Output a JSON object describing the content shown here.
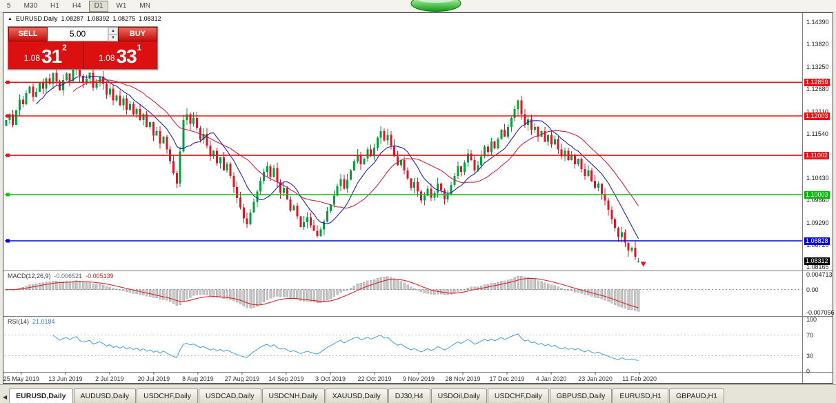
{
  "toolbar": {
    "timeframes": [
      "5",
      "M30",
      "H1",
      "H4",
      "D1",
      "W1",
      "MN"
    ],
    "active_timeframe": "D1"
  },
  "quote_bar": {
    "symbol_label": "EURUSD,Daily",
    "open": "1.08287",
    "high": "1.08392",
    "low": "1.08275",
    "close": "1.08312"
  },
  "trade_panel": {
    "sell_label": "SELL",
    "buy_label": "BUY",
    "volume": "5.00",
    "sell_price_small": "1.08",
    "sell_price_big": "31",
    "sell_price_sup": "2",
    "buy_price_small": "1.08",
    "buy_price_big": "33",
    "buy_price_sup": "1"
  },
  "price_axis": {
    "labels": [
      {
        "text": "1.14390",
        "price": 1.1439
      },
      {
        "text": "1.13820",
        "price": 1.1382
      },
      {
        "text": "1.13250",
        "price": 1.1325
      },
      {
        "text": "1.12680",
        "price": 1.1268
      },
      {
        "text": "1.12110",
        "price": 1.1211
      },
      {
        "text": "1.11540",
        "price": 1.1154
      },
      {
        "text": "1.10430",
        "price": 1.1043
      },
      {
        "text": "1.09860",
        "price": 1.0986
      },
      {
        "text": "1.09290",
        "price": 1.0929
      },
      {
        "text": "1.08720",
        "price": 1.0872
      },
      {
        "text": "1.08165",
        "price": 1.08165
      }
    ]
  },
  "levels": [
    {
      "label": "1.12859",
      "price": 1.12859,
      "color": "#ee1111",
      "badge": "red"
    },
    {
      "label": "1.12003",
      "price": 1.12003,
      "color": "#ee1111",
      "badge": "red"
    },
    {
      "label": "1.11002",
      "price": 1.11002,
      "color": "#ee1111",
      "badge": "red"
    },
    {
      "label": "1.10003",
      "price": 1.10003,
      "color": "#00cc00",
      "badge": "green"
    },
    {
      "label": "1.08828",
      "price": 1.08828,
      "color": "#0000ee",
      "badge": "blue"
    }
  ],
  "current_price": {
    "label": "1.08312",
    "price": 1.08312,
    "badge": "black"
  },
  "macd": {
    "title": "MACD(12,26,9)",
    "value_main": "-0.006521",
    "value_signal": "-0.005139",
    "axis": [
      "0.004713",
      "0.00",
      "-0.007056"
    ]
  },
  "rsi": {
    "title": "RSI(14)",
    "value": "21.0184",
    "axis": [
      "100",
      "70",
      "30",
      "0"
    ],
    "level_lines": [
      70,
      30
    ]
  },
  "date_axis": [
    "25 May 2019",
    "13 Jun 2019",
    "2 Jul 2019",
    "20 Jul 2019",
    "8 Aug 2019",
    "27 Aug 2019",
    "14 Sep 2019",
    "3 Oct 2019",
    "22 Oct 2019",
    "9 Nov 2019",
    "28 Nov 2019",
    "17 Dec 2019",
    "4 Jan 2020",
    "23 Jan 2020",
    "11 Feb 2020"
  ],
  "tabs": [
    {
      "label": "EURUSD,Daily",
      "active": true
    },
    {
      "label": "AUDUSD,Daily",
      "active": false
    },
    {
      "label": "USDCHF,Daily",
      "active": false
    },
    {
      "label": "USDCAD,Daily",
      "active": false
    },
    {
      "label": "USDCNH,Daily",
      "active": false
    },
    {
      "label": "XAUUSD,Daily",
      "active": false
    },
    {
      "label": "DJ30,H4",
      "active": false
    },
    {
      "label": "USDOil,Daily",
      "active": false
    },
    {
      "label": "USDCHF,Daily",
      "active": false
    },
    {
      "label": "GBPUSD,Daily",
      "active": false
    },
    {
      "label": "EURUSD,H1",
      "active": false
    },
    {
      "label": "GBPAUD,H1",
      "active": false
    }
  ],
  "chart_data": {
    "type": "candlestick",
    "symbol": "EURUSD",
    "timeframe": "Daily",
    "visible_price_range": [
      1.0809,
      1.1462
    ],
    "first_open": 1.1175,
    "last_candle_ohlc": [
      1.08287,
      1.08392,
      1.08275,
      1.08312
    ],
    "closes_approx": [
      1.119,
      1.1205,
      1.1178,
      1.1215,
      1.1242,
      1.123,
      1.1258,
      1.1275,
      1.1249,
      1.1262,
      1.1285,
      1.127,
      1.1296,
      1.1282,
      1.131,
      1.1288,
      1.1265,
      1.1292,
      1.1308,
      1.129,
      1.132,
      1.1338,
      1.1302,
      1.1285,
      1.1295,
      1.131,
      1.1272,
      1.1285,
      1.13,
      1.1282,
      1.1255,
      1.127,
      1.124,
      1.1252,
      1.1228,
      1.1245,
      1.1215,
      1.123,
      1.1205,
      1.1218,
      1.119,
      1.1205,
      1.1172,
      1.1185,
      1.115,
      1.1162,
      1.113,
      1.1148,
      1.1115,
      1.1085,
      1.1055,
      1.1028,
      1.111,
      1.119,
      1.1205,
      1.118,
      1.1195,
      1.117,
      1.114,
      1.1155,
      1.1125,
      1.1098,
      1.1112,
      1.108,
      1.1095,
      1.1062,
      1.1078,
      1.1048,
      1.102,
      1.0992,
      1.0968,
      1.094,
      1.0925,
      1.0955,
      1.0982,
      1.1008,
      1.1035,
      1.1058,
      1.1072,
      1.1045,
      1.1068,
      1.1032,
      1.1005,
      1.1018,
      1.0988,
      1.096,
      1.0972,
      1.0945,
      1.0918,
      1.093,
      1.0942,
      1.0922,
      1.0908,
      1.0895,
      1.0912,
      1.0932,
      1.0958,
      1.0975,
      1.0998,
      1.1022,
      1.104,
      1.1015,
      1.1038,
      1.1062,
      1.1085,
      1.1102,
      1.1078,
      1.1092,
      1.1115,
      1.1098,
      1.112,
      1.1145,
      1.1162,
      1.1138,
      1.1152,
      1.1125,
      1.1098,
      1.1075,
      1.1088,
      1.1062,
      1.1042,
      1.1018,
      1.1032,
      1.1008,
      1.0985,
      1.0998,
      1.1015,
      1.0992,
      1.1005,
      1.1028,
      1.1012,
      1.0988,
      1.1002,
      1.1025,
      1.1048,
      1.1072,
      1.1058,
      1.1082,
      1.1105,
      1.1088,
      1.1062,
      1.1075,
      1.1098,
      1.1122,
      1.1108,
      1.1135,
      1.1118,
      1.1142,
      1.1165,
      1.1148,
      1.1172,
      1.1195,
      1.1218,
      1.124,
      1.1205,
      1.1178,
      1.1192,
      1.1165,
      1.1172,
      1.1148,
      1.1162,
      1.1135,
      1.1152,
      1.1128,
      1.1142,
      1.1115,
      1.1098,
      1.1112,
      1.1088,
      1.1102,
      1.1078,
      1.1092,
      1.1065,
      1.1048,
      1.1062,
      1.1035,
      1.1018,
      1.1028,
      1.1002,
      1.0985,
      1.0962,
      1.0938,
      1.0915,
      1.0892,
      1.0905,
      1.0878,
      1.0858,
      1.0865,
      1.0842,
      1.0831
    ],
    "indicators": {
      "ma_fast": 10,
      "ma_slow": 21,
      "macd": [
        12,
        26,
        9
      ],
      "rsi": 14
    },
    "colors": {
      "up": "#00a13a",
      "down": "#e31224",
      "ma_fast": "#2222aa",
      "ma_slow": "#cc2244",
      "macd_hist": "#c6c6c6",
      "macd_signal": "#dd2222",
      "rsi_line": "#3c9fd9",
      "level_red": "#ee1111",
      "level_green": "#00cc00",
      "level_blue": "#0000ee"
    }
  }
}
